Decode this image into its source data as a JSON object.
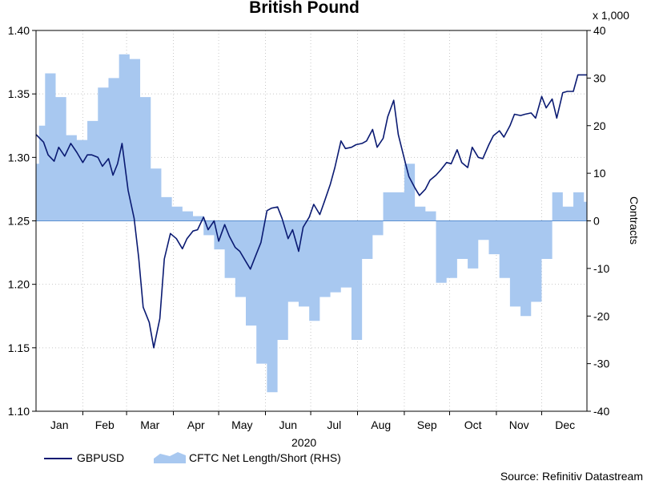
{
  "chart_data": {
    "type": "line",
    "title": "British Pound",
    "x_axis": {
      "months": [
        "Jan",
        "Feb",
        "Mar",
        "Apr",
        "May",
        "Jun",
        "Jul",
        "Aug",
        "Sep",
        "Oct",
        "Nov",
        "Dec"
      ],
      "year_label": "2020"
    },
    "y_left": {
      "min": 1.1,
      "max": 1.4,
      "ticks": [
        "1.40",
        "1.35",
        "1.30",
        "1.25",
        "1.20",
        "1.15",
        "1.10"
      ]
    },
    "y_right": {
      "min": -40,
      "max": 40,
      "ticks": [
        "40",
        "30",
        "20",
        "10",
        "0",
        "-10",
        "-20",
        "-30",
        "-40"
      ],
      "label": "Contracts",
      "units": "x 1,000"
    },
    "grid": true,
    "series": [
      {
        "name": "GBPUSD",
        "type": "line",
        "axis": "left",
        "color": "#0a1a72",
        "points": [
          [
            "2020-01-01",
            1.318
          ],
          [
            "2020-01-06",
            1.312
          ],
          [
            "2020-01-09",
            1.302
          ],
          [
            "2020-01-13",
            1.297
          ],
          [
            "2020-01-16",
            1.308
          ],
          [
            "2020-01-20",
            1.301
          ],
          [
            "2020-01-24",
            1.311
          ],
          [
            "2020-01-28",
            1.304
          ],
          [
            "2020-02-01",
            1.296
          ],
          [
            "2020-02-04",
            1.302
          ],
          [
            "2020-02-07",
            1.302
          ],
          [
            "2020-02-11",
            1.3
          ],
          [
            "2020-02-14",
            1.293
          ],
          [
            "2020-02-18",
            1.299
          ],
          [
            "2020-02-21",
            1.286
          ],
          [
            "2020-02-24",
            1.295
          ],
          [
            "2020-02-27",
            1.311
          ],
          [
            "2020-03-02",
            1.274
          ],
          [
            "2020-03-06",
            1.252
          ],
          [
            "2020-03-09",
            1.221
          ],
          [
            "2020-03-12",
            1.182
          ],
          [
            "2020-03-16",
            1.17
          ],
          [
            "2020-03-19",
            1.15
          ],
          [
            "2020-03-23",
            1.173
          ],
          [
            "2020-03-26",
            1.22
          ],
          [
            "2020-03-30",
            1.24
          ],
          [
            "2020-04-03",
            1.236
          ],
          [
            "2020-04-07",
            1.228
          ],
          [
            "2020-04-10",
            1.236
          ],
          [
            "2020-04-14",
            1.242
          ],
          [
            "2020-04-17",
            1.243
          ],
          [
            "2020-04-21",
            1.253
          ],
          [
            "2020-04-24",
            1.243
          ],
          [
            "2020-04-28",
            1.25
          ],
          [
            "2020-05-01",
            1.234
          ],
          [
            "2020-05-05",
            1.247
          ],
          [
            "2020-05-08",
            1.238
          ],
          [
            "2020-05-12",
            1.229
          ],
          [
            "2020-05-15",
            1.226
          ],
          [
            "2020-05-19",
            1.218
          ],
          [
            "2020-05-22",
            1.212
          ],
          [
            "2020-05-26",
            1.224
          ],
          [
            "2020-05-29",
            1.233
          ],
          [
            "2020-06-02",
            1.258
          ],
          [
            "2020-06-05",
            1.26
          ],
          [
            "2020-06-09",
            1.261
          ],
          [
            "2020-06-12",
            1.252
          ],
          [
            "2020-06-16",
            1.236
          ],
          [
            "2020-06-19",
            1.243
          ],
          [
            "2020-06-23",
            1.226
          ],
          [
            "2020-06-26",
            1.245
          ],
          [
            "2020-06-30",
            1.253
          ],
          [
            "2020-07-03",
            1.263
          ],
          [
            "2020-07-07",
            1.255
          ],
          [
            "2020-07-10",
            1.265
          ],
          [
            "2020-07-14",
            1.279
          ],
          [
            "2020-07-17",
            1.292
          ],
          [
            "2020-07-21",
            1.313
          ],
          [
            "2020-07-24",
            1.307
          ],
          [
            "2020-07-28",
            1.308
          ],
          [
            "2020-07-31",
            1.31
          ],
          [
            "2020-08-04",
            1.311
          ],
          [
            "2020-08-07",
            1.313
          ],
          [
            "2020-08-11",
            1.322
          ],
          [
            "2020-08-14",
            1.308
          ],
          [
            "2020-08-18",
            1.315
          ],
          [
            "2020-08-21",
            1.332
          ],
          [
            "2020-08-25",
            1.345
          ],
          [
            "2020-08-28",
            1.318
          ],
          [
            "2020-09-01",
            1.299
          ],
          [
            "2020-09-04",
            1.285
          ],
          [
            "2020-09-08",
            1.276
          ],
          [
            "2020-09-11",
            1.27
          ],
          [
            "2020-09-15",
            1.275
          ],
          [
            "2020-09-18",
            1.282
          ],
          [
            "2020-09-22",
            1.286
          ],
          [
            "2020-09-25",
            1.29
          ],
          [
            "2020-09-29",
            1.296
          ],
          [
            "2020-10-02",
            1.295
          ],
          [
            "2020-10-06",
            1.306
          ],
          [
            "2020-10-09",
            1.296
          ],
          [
            "2020-10-13",
            1.292
          ],
          [
            "2020-10-16",
            1.308
          ],
          [
            "2020-10-20",
            1.3
          ],
          [
            "2020-10-23",
            1.299
          ],
          [
            "2020-10-27",
            1.31
          ],
          [
            "2020-10-30",
            1.317
          ],
          [
            "2020-11-03",
            1.321
          ],
          [
            "2020-11-06",
            1.316
          ],
          [
            "2020-11-10",
            1.325
          ],
          [
            "2020-11-13",
            1.334
          ],
          [
            "2020-11-17",
            1.333
          ],
          [
            "2020-11-20",
            1.334
          ],
          [
            "2020-11-24",
            1.335
          ],
          [
            "2020-11-27",
            1.331
          ],
          [
            "2020-12-01",
            1.348
          ],
          [
            "2020-12-04",
            1.339
          ],
          [
            "2020-12-08",
            1.346
          ],
          [
            "2020-12-11",
            1.331
          ],
          [
            "2020-12-15",
            1.351
          ],
          [
            "2020-12-18",
            1.352
          ],
          [
            "2020-12-22",
            1.352
          ],
          [
            "2020-12-25",
            1.365
          ],
          [
            "2020-12-31",
            1.365
          ]
        ]
      },
      {
        "name": "CFTC Net Length/Short (RHS)",
        "type": "area",
        "axis": "right",
        "color": "#a8c8f0",
        "points": [
          [
            "2020-01-01",
            12
          ],
          [
            "2020-01-03",
            20
          ],
          [
            "2020-01-07",
            31
          ],
          [
            "2020-01-14",
            26
          ],
          [
            "2020-01-21",
            18
          ],
          [
            "2020-01-28",
            17
          ],
          [
            "2020-02-04",
            21
          ],
          [
            "2020-02-11",
            28
          ],
          [
            "2020-02-18",
            30
          ],
          [
            "2020-02-25",
            35
          ],
          [
            "2020-03-03",
            34
          ],
          [
            "2020-03-10",
            26
          ],
          [
            "2020-03-17",
            11
          ],
          [
            "2020-03-24",
            5
          ],
          [
            "2020-03-31",
            3
          ],
          [
            "2020-04-07",
            2
          ],
          [
            "2020-04-14",
            1
          ],
          [
            "2020-04-21",
            -3
          ],
          [
            "2020-04-28",
            -6
          ],
          [
            "2020-05-05",
            -12
          ],
          [
            "2020-05-12",
            -16
          ],
          [
            "2020-05-19",
            -22
          ],
          [
            "2020-05-26",
            -30
          ],
          [
            "2020-06-02",
            -36
          ],
          [
            "2020-06-09",
            -25
          ],
          [
            "2020-06-16",
            -17
          ],
          [
            "2020-06-23",
            -18
          ],
          [
            "2020-06-30",
            -21
          ],
          [
            "2020-07-07",
            -16
          ],
          [
            "2020-07-14",
            -15
          ],
          [
            "2020-07-21",
            -14
          ],
          [
            "2020-07-28",
            -25
          ],
          [
            "2020-08-04",
            -8
          ],
          [
            "2020-08-11",
            -3
          ],
          [
            "2020-08-18",
            6
          ],
          [
            "2020-08-25",
            6
          ],
          [
            "2020-09-01",
            12
          ],
          [
            "2020-09-08",
            3
          ],
          [
            "2020-09-15",
            2
          ],
          [
            "2020-09-22",
            -13
          ],
          [
            "2020-09-29",
            -12
          ],
          [
            "2020-10-06",
            -8
          ],
          [
            "2020-10-13",
            -10
          ],
          [
            "2020-10-20",
            -4
          ],
          [
            "2020-10-27",
            -7
          ],
          [
            "2020-11-03",
            -12
          ],
          [
            "2020-11-10",
            -18
          ],
          [
            "2020-11-17",
            -20
          ],
          [
            "2020-11-24",
            -17
          ],
          [
            "2020-12-01",
            -8
          ],
          [
            "2020-12-08",
            6
          ],
          [
            "2020-12-15",
            3
          ],
          [
            "2020-12-22",
            6
          ],
          [
            "2020-12-29",
            4
          ]
        ]
      }
    ],
    "legend": {
      "placement": "bottom-left"
    },
    "source": "Source: Refinitiv Datastream"
  }
}
